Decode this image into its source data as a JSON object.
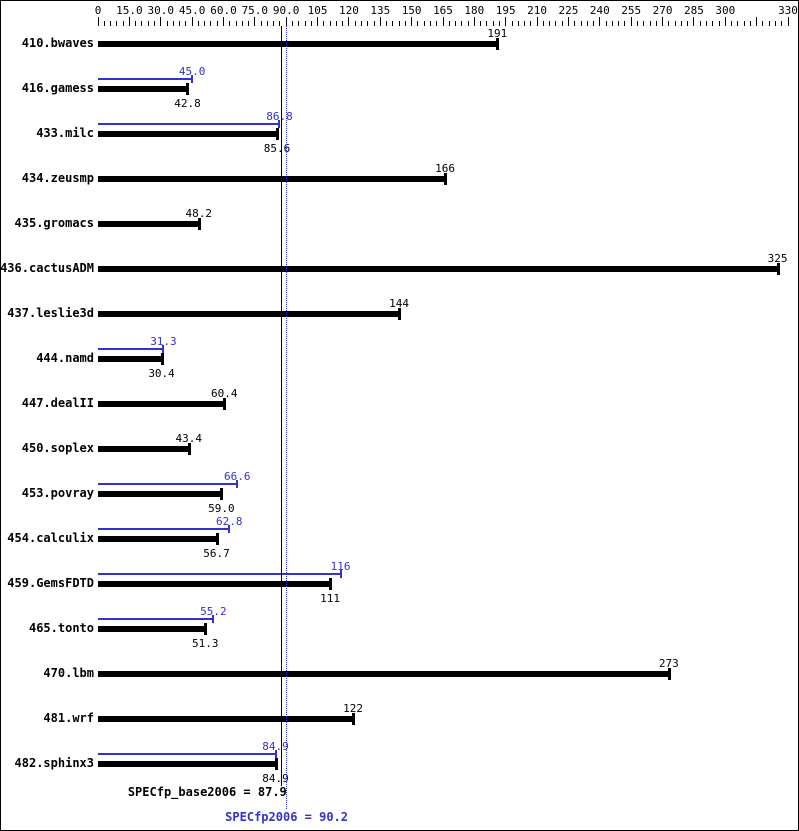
{
  "colors": {
    "base": "#000000",
    "peak": "#3333cc",
    "background": "#ffffff",
    "border": "#000000"
  },
  "footer": {
    "base_label": "SPECfp_base2006 = 87.9",
    "peak_label": "SPECfp2006 = 90.2",
    "base_value": 87.9,
    "peak_value": 90.2
  },
  "chart_data": {
    "type": "bar",
    "orientation": "horizontal",
    "legend": "none",
    "grid": false,
    "base_color": "#000000",
    "peak_color": "#3333cc",
    "xlim": [
      0,
      331
    ],
    "axis": {
      "min": 0,
      "max_tick": 330,
      "major_step": 15,
      "minor_step": 3,
      "labels": [
        {
          "v": 0,
          "text": "0"
        },
        {
          "v": 15,
          "text": "15.0"
        },
        {
          "v": 30,
          "text": "30.0"
        },
        {
          "v": 45,
          "text": "45.0"
        },
        {
          "v": 60,
          "text": "60.0"
        },
        {
          "v": 75,
          "text": "75.0"
        },
        {
          "v": 90,
          "text": "90.0"
        },
        {
          "v": 105,
          "text": "105"
        },
        {
          "v": 120,
          "text": "120"
        },
        {
          "v": 135,
          "text": "135"
        },
        {
          "v": 150,
          "text": "150"
        },
        {
          "v": 165,
          "text": "165"
        },
        {
          "v": 180,
          "text": "180"
        },
        {
          "v": 195,
          "text": "195"
        },
        {
          "v": 210,
          "text": "210"
        },
        {
          "v": 225,
          "text": "225"
        },
        {
          "v": 240,
          "text": "240"
        },
        {
          "v": 255,
          "text": "255"
        },
        {
          "v": 270,
          "text": "270"
        },
        {
          "v": 285,
          "text": "285"
        },
        {
          "v": 300,
          "text": "300"
        },
        {
          "v": 330,
          "text": "330"
        }
      ]
    },
    "series_names": [
      "base",
      "peak"
    ],
    "benchmarks": [
      {
        "name": "410.bwaves",
        "base": 191,
        "base_label": "191",
        "peak": null,
        "peak_label": null
      },
      {
        "name": "416.gamess",
        "base": 42.8,
        "base_label": "42.8",
        "peak": 45.0,
        "peak_label": "45.0"
      },
      {
        "name": "433.milc",
        "base": 85.6,
        "base_label": "85.6",
        "peak": 86.8,
        "peak_label": "86.8"
      },
      {
        "name": "434.zeusmp",
        "base": 166,
        "base_label": "166",
        "peak": null,
        "peak_label": null
      },
      {
        "name": "435.gromacs",
        "base": 48.2,
        "base_label": "48.2",
        "peak": null,
        "peak_label": null
      },
      {
        "name": "436.cactusADM",
        "base": 325,
        "base_label": "325",
        "peak": null,
        "peak_label": null
      },
      {
        "name": "437.leslie3d",
        "base": 144,
        "base_label": "144",
        "peak": null,
        "peak_label": null
      },
      {
        "name": "444.namd",
        "base": 30.4,
        "base_label": "30.4",
        "peak": 31.3,
        "peak_label": "31.3"
      },
      {
        "name": "447.dealII",
        "base": 60.4,
        "base_label": "60.4",
        "peak": null,
        "peak_label": null
      },
      {
        "name": "450.soplex",
        "base": 43.4,
        "base_label": "43.4",
        "peak": null,
        "peak_label": null
      },
      {
        "name": "453.povray",
        "base": 59.0,
        "base_label": "59.0",
        "peak": 66.6,
        "peak_label": "66.6"
      },
      {
        "name": "454.calculix",
        "base": 56.7,
        "base_label": "56.7",
        "peak": 62.8,
        "peak_label": "62.8"
      },
      {
        "name": "459.GemsFDTD",
        "base": 111,
        "base_label": "111",
        "peak": 116,
        "peak_label": "116"
      },
      {
        "name": "465.tonto",
        "base": 51.3,
        "base_label": "51.3",
        "peak": 55.2,
        "peak_label": "55.2"
      },
      {
        "name": "470.lbm",
        "base": 273,
        "base_label": "273",
        "peak": null,
        "peak_label": null
      },
      {
        "name": "481.wrf",
        "base": 122,
        "base_label": "122",
        "peak": null,
        "peak_label": null
      },
      {
        "name": "482.sphinx3",
        "base": 84.9,
        "base_label": "84.9",
        "peak": 84.9,
        "peak_label": "84.9"
      }
    ],
    "reference_lines": {
      "base_mean": 87.9,
      "peak_mean": 90.2
    }
  }
}
